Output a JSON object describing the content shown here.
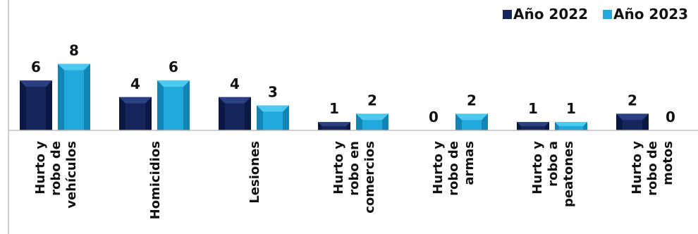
{
  "chart_data": {
    "type": "bar",
    "categories": [
      [
        "Hurto y",
        "robo de",
        "vehículos"
      ],
      [
        "Homicidios"
      ],
      [
        "Lesiones"
      ],
      [
        "Hurto y",
        "robo en",
        "comercios"
      ],
      [
        "Hurto y",
        "robo de",
        "armas"
      ],
      [
        "Hurto y",
        "robo a",
        "peatones"
      ],
      [
        "Hurto y",
        "robo de",
        "motos"
      ]
    ],
    "series": [
      {
        "name": "Año 2022",
        "values": [
          6,
          4,
          4,
          1,
          0,
          1,
          2
        ]
      },
      {
        "name": "Año 2023",
        "values": [
          8,
          6,
          3,
          2,
          2,
          1,
          0
        ]
      }
    ],
    "ylim": [
      0,
      8
    ],
    "legend": "top-right",
    "grid": false,
    "colors": {
      "series_2022": "#16265c",
      "series_2022_dark": "#0b1640",
      "series_2022_light": "#2d4386",
      "series_2023": "#21a9dc",
      "series_2023_dark": "#0f7fae",
      "series_2023_light": "#52ccf2",
      "axis": "#bfbfbf"
    }
  }
}
